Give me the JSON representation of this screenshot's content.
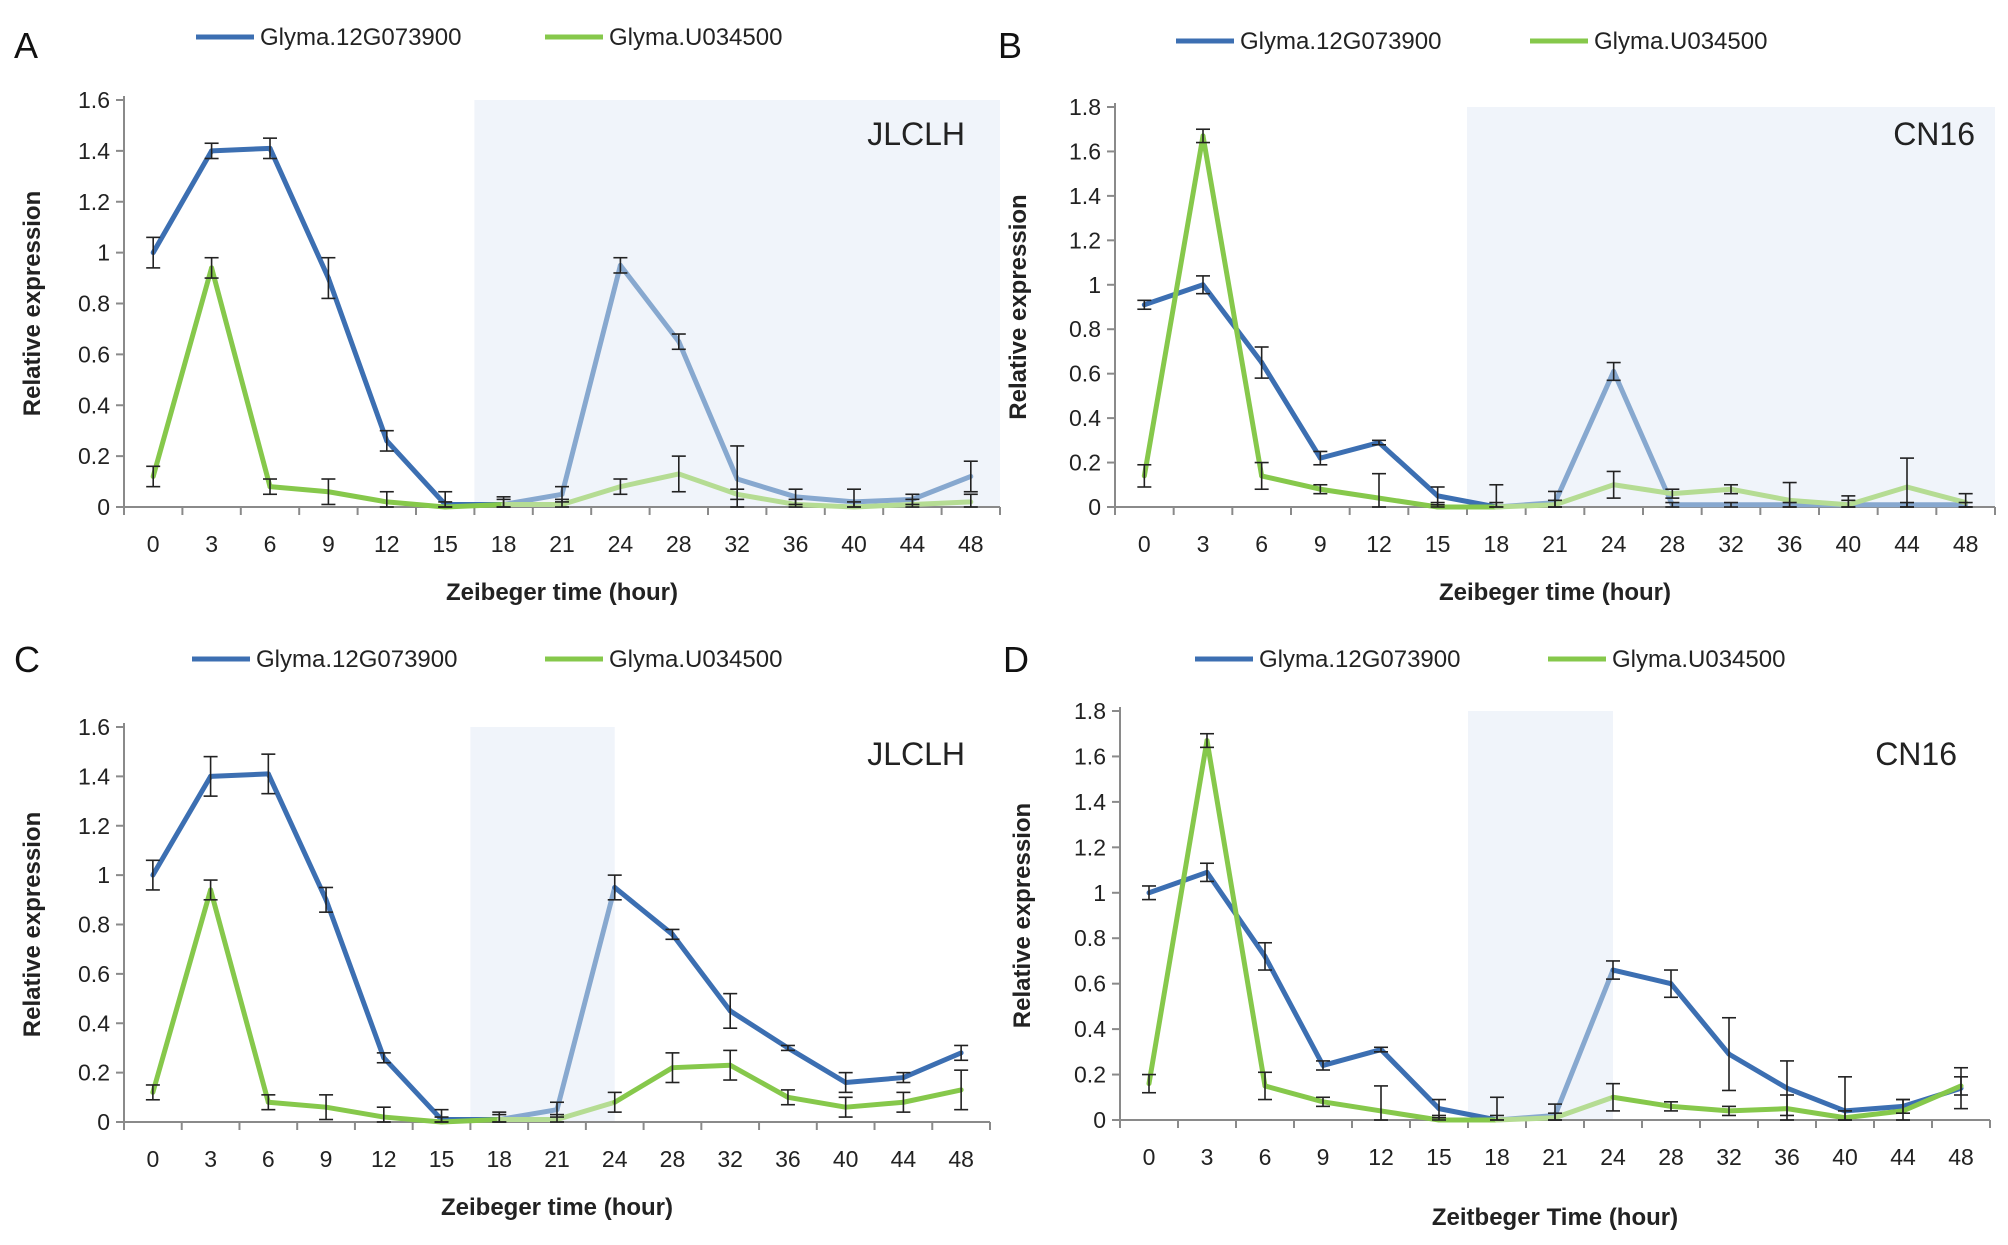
{
  "colors": {
    "blue": "#3c6fb2",
    "blue_light": "#87a8cf",
    "green": "#86c84b",
    "green_light": "#b5dc93",
    "shade": "#f0f4fa",
    "axis": "#8a8a8a"
  },
  "chart_data": [
    {
      "panel": "A",
      "type": "line",
      "label": "JLCLH",
      "categories": [
        "0",
        "3",
        "6",
        "9",
        "12",
        "15",
        "18",
        "21",
        "24",
        "28",
        "32",
        "36",
        "40",
        "44",
        "48"
      ],
      "xlabel": "Zeibeger time (hour)",
      "ylabel": "Relative expression",
      "ylim": [
        0,
        1.6
      ],
      "yticks": [
        "0",
        "0.2",
        "0.4",
        "0.6",
        "0.8",
        "1",
        "1.2",
        "1.4",
        "1.6"
      ],
      "shaded_range": [
        5.5,
        14.5
      ],
      "series": [
        {
          "name": "Glyma.12G073900",
          "color": "blue",
          "values": [
            1.0,
            1.4,
            1.41,
            0.9,
            0.26,
            0.01,
            0.01,
            0.05,
            0.95,
            0.65,
            0.11,
            0.04,
            0.02,
            0.03,
            0.12
          ],
          "errors": [
            0.06,
            0.03,
            0.04,
            0.08,
            0.04,
            0.05,
            0.03,
            0.03,
            0.03,
            0.03,
            0.13,
            0.03,
            0.05,
            0.02,
            0.06
          ]
        },
        {
          "name": "Glyma.U034500",
          "color": "green",
          "values": [
            0.12,
            0.94,
            0.08,
            0.06,
            0.02,
            0.0,
            0.01,
            0.01,
            0.08,
            0.13,
            0.05,
            0.01,
            0.0,
            0.01,
            0.02
          ],
          "errors": [
            0.04,
            0.04,
            0.03,
            0.05,
            0.04,
            0.02,
            0.02,
            0.02,
            0.03,
            0.07,
            0.02,
            0.02,
            0.02,
            0.02,
            0.03
          ]
        }
      ]
    },
    {
      "panel": "B",
      "type": "line",
      "label": "CN16",
      "categories": [
        "0",
        "3",
        "6",
        "9",
        "12",
        "15",
        "18",
        "21",
        "24",
        "28",
        "32",
        "36",
        "40",
        "44",
        "48"
      ],
      "xlabel": "Zeibeger time (hour)",
      "ylabel": "Relative expression",
      "ylim": [
        0,
        1.8
      ],
      "yticks": [
        "0",
        "0.2",
        "0.4",
        "0.6",
        "0.8",
        "1",
        "1.2",
        "1.4",
        "1.6",
        "1.8"
      ],
      "shaded_range": [
        5.5,
        14.5
      ],
      "series": [
        {
          "name": "Glyma.12G073900",
          "color": "blue",
          "values": [
            0.91,
            1.0,
            0.65,
            0.22,
            0.29,
            0.05,
            0.0,
            0.02,
            0.61,
            0.01,
            0.01,
            0.01,
            0.01,
            0.01,
            0.01
          ],
          "errors": [
            0.02,
            0.04,
            0.07,
            0.03,
            0.01,
            0.04,
            0.02,
            0.05,
            0.04,
            0.01,
            0.01,
            0.01,
            0.02,
            0.01,
            0.01
          ]
        },
        {
          "name": "Glyma.U034500",
          "color": "green",
          "values": [
            0.14,
            1.67,
            0.14,
            0.08,
            0.04,
            0.0,
            0.0,
            0.01,
            0.1,
            0.06,
            0.08,
            0.03,
            0.01,
            0.09,
            0.02
          ],
          "errors": [
            0.05,
            0.03,
            0.06,
            0.02,
            0.11,
            0.02,
            0.1,
            0.02,
            0.06,
            0.02,
            0.02,
            0.08,
            0.04,
            0.13,
            0.04
          ]
        }
      ]
    },
    {
      "panel": "C",
      "type": "line",
      "label": "JLCLH",
      "categories": [
        "0",
        "3",
        "6",
        "9",
        "12",
        "15",
        "18",
        "21",
        "24",
        "28",
        "32",
        "36",
        "40",
        "44",
        "48"
      ],
      "xlabel": "Zeibeger time (hour)",
      "ylabel": "Relative expression",
      "ylim": [
        0,
        1.6
      ],
      "yticks": [
        "0",
        "0.2",
        "0.4",
        "0.6",
        "0.8",
        "1",
        "1.2",
        "1.4",
        "1.6"
      ],
      "shaded_range": [
        5.5,
        8.0
      ],
      "series": [
        {
          "name": "Glyma.12G073900",
          "color": "blue",
          "values": [
            1.0,
            1.4,
            1.41,
            0.9,
            0.26,
            0.01,
            0.01,
            0.05,
            0.95,
            0.76,
            0.45,
            0.3,
            0.16,
            0.18,
            0.28
          ],
          "errors": [
            0.06,
            0.08,
            0.08,
            0.05,
            0.02,
            0.04,
            0.03,
            0.03,
            0.05,
            0.02,
            0.07,
            0.01,
            0.04,
            0.02,
            0.03
          ]
        },
        {
          "name": "Glyma.U034500",
          "color": "green",
          "values": [
            0.12,
            0.94,
            0.08,
            0.06,
            0.02,
            0.0,
            0.01,
            0.01,
            0.08,
            0.22,
            0.23,
            0.1,
            0.06,
            0.08,
            0.13
          ],
          "errors": [
            0.03,
            0.04,
            0.03,
            0.05,
            0.04,
            0.02,
            0.02,
            0.02,
            0.04,
            0.06,
            0.06,
            0.03,
            0.04,
            0.04,
            0.08
          ]
        }
      ]
    },
    {
      "panel": "D",
      "type": "line",
      "label": "CN16",
      "categories": [
        "0",
        "3",
        "6",
        "9",
        "12",
        "15",
        "18",
        "21",
        "24",
        "28",
        "32",
        "36",
        "40",
        "44",
        "48"
      ],
      "xlabel": "Zeitbeger Time (hour)",
      "ylabel": "Relative expression",
      "ylim": [
        0,
        1.8
      ],
      "yticks": [
        "0",
        "0.2",
        "0.4",
        "0.6",
        "0.8",
        "1",
        "1.2",
        "1.4",
        "1.6",
        "1.8"
      ],
      "shaded_range": [
        5.5,
        8.0
      ],
      "series": [
        {
          "name": "Glyma.12G073900",
          "color": "blue",
          "values": [
            1.0,
            1.09,
            0.72,
            0.24,
            0.31,
            0.05,
            0.0,
            0.02,
            0.66,
            0.6,
            0.29,
            0.14,
            0.04,
            0.06,
            0.14
          ],
          "errors": [
            0.03,
            0.04,
            0.06,
            0.02,
            0.01,
            0.04,
            0.02,
            0.05,
            0.04,
            0.06,
            0.16,
            0.12,
            0.15,
            0.03,
            0.09
          ]
        },
        {
          "name": "Glyma.U034500",
          "color": "green",
          "values": [
            0.16,
            1.67,
            0.15,
            0.08,
            0.04,
            0.0,
            0.0,
            0.01,
            0.1,
            0.06,
            0.04,
            0.05,
            0.01,
            0.04,
            0.15
          ],
          "errors": [
            0.04,
            0.03,
            0.06,
            0.02,
            0.11,
            0.02,
            0.1,
            0.02,
            0.06,
            0.02,
            0.02,
            0.06,
            0.03,
            0.05,
            0.04
          ]
        }
      ]
    }
  ]
}
